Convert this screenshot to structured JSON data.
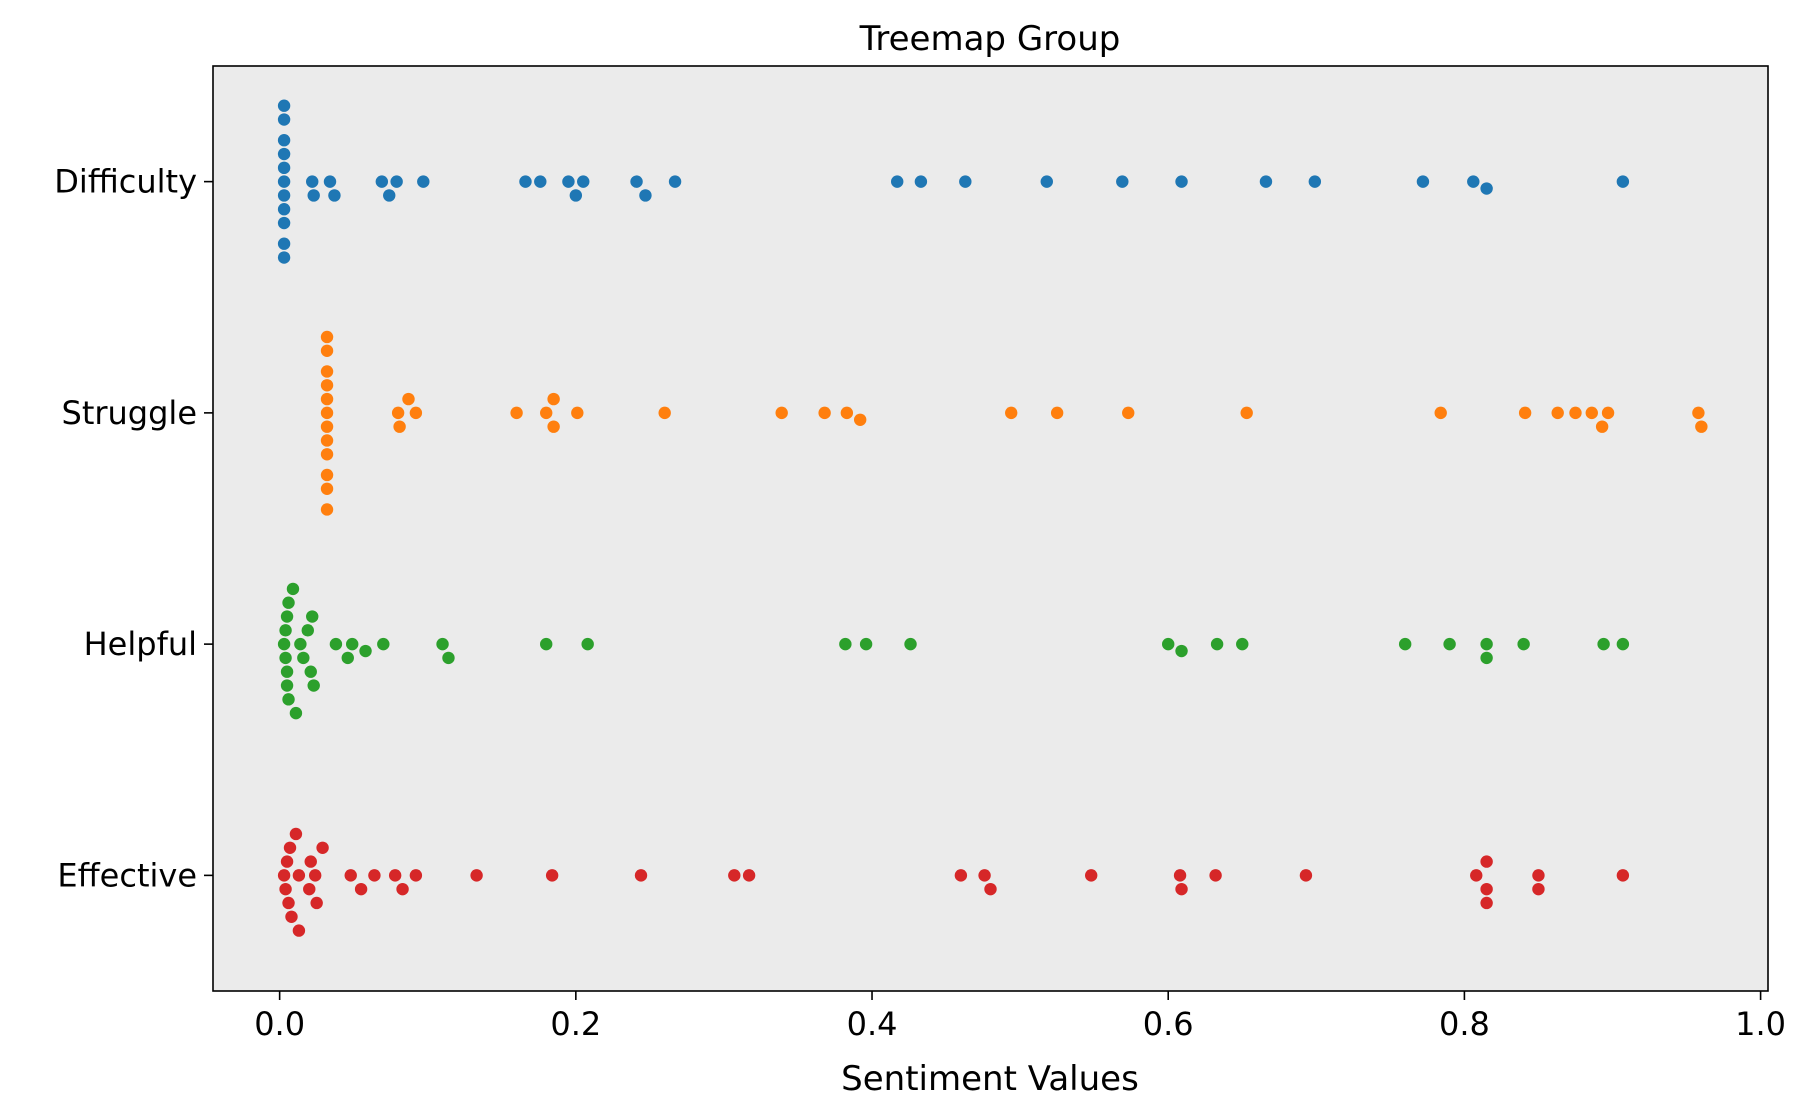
{
  "chart_data": {
    "type": "scatter",
    "subtype": "swarm",
    "title": "Treemap Group",
    "xlabel": "Sentiment Values",
    "ylabel": "",
    "xlim": [
      -0.045,
      1.005
    ],
    "xticks": [
      0.0,
      0.2,
      0.4,
      0.6,
      0.8,
      1.0
    ],
    "xtick_labels": [
      "0.0",
      "0.2",
      "0.4",
      "0.6",
      "0.8",
      "1.0"
    ],
    "categories": [
      "Difficulty",
      "Struggle",
      "Helpful",
      "Effective"
    ],
    "grid": false,
    "legend": "none",
    "background": "#ebebeb",
    "series": [
      {
        "category": "Difficulty",
        "color": "#1f77b4",
        "values": [
          0.003,
          0.003,
          0.003,
          0.003,
          0.003,
          0.003,
          0.003,
          0.003,
          0.003,
          0.003,
          0.003,
          0.022,
          0.023,
          0.034,
          0.037,
          0.069,
          0.074,
          0.079,
          0.097,
          0.166,
          0.176,
          0.195,
          0.2,
          0.205,
          0.241,
          0.247,
          0.267,
          0.417,
          0.433,
          0.463,
          0.518,
          0.569,
          0.609,
          0.666,
          0.699,
          0.772,
          0.806,
          0.815,
          0.907
        ]
      },
      {
        "category": "Struggle",
        "color": "#ff7f0e",
        "values": [
          0.032,
          0.032,
          0.032,
          0.032,
          0.032,
          0.032,
          0.032,
          0.032,
          0.032,
          0.032,
          0.032,
          0.032,
          0.08,
          0.081,
          0.087,
          0.092,
          0.16,
          0.18,
          0.185,
          0.185,
          0.201,
          0.26,
          0.339,
          0.368,
          0.383,
          0.392,
          0.494,
          0.525,
          0.573,
          0.653,
          0.784,
          0.841,
          0.863,
          0.875,
          0.886,
          0.893,
          0.897,
          0.958,
          0.96
        ]
      },
      {
        "category": "Helpful",
        "color": "#2ca02c",
        "values": [
          0.003,
          0.004,
          0.004,
          0.005,
          0.005,
          0.005,
          0.006,
          0.006,
          0.009,
          0.011,
          0.014,
          0.016,
          0.019,
          0.021,
          0.022,
          0.023,
          0.038,
          0.046,
          0.049,
          0.058,
          0.07,
          0.11,
          0.114,
          0.18,
          0.208,
          0.382,
          0.396,
          0.426,
          0.6,
          0.609,
          0.633,
          0.65,
          0.76,
          0.79,
          0.815,
          0.815,
          0.84,
          0.894,
          0.907
        ]
      },
      {
        "category": "Effective",
        "color": "#d62728",
        "values": [
          0.003,
          0.004,
          0.005,
          0.006,
          0.007,
          0.008,
          0.011,
          0.013,
          0.013,
          0.02,
          0.021,
          0.024,
          0.025,
          0.029,
          0.048,
          0.055,
          0.064,
          0.078,
          0.083,
          0.092,
          0.133,
          0.184,
          0.244,
          0.307,
          0.317,
          0.46,
          0.476,
          0.48,
          0.548,
          0.608,
          0.609,
          0.632,
          0.693,
          0.808,
          0.815,
          0.815,
          0.815,
          0.85,
          0.85,
          0.907
        ]
      }
    ]
  }
}
